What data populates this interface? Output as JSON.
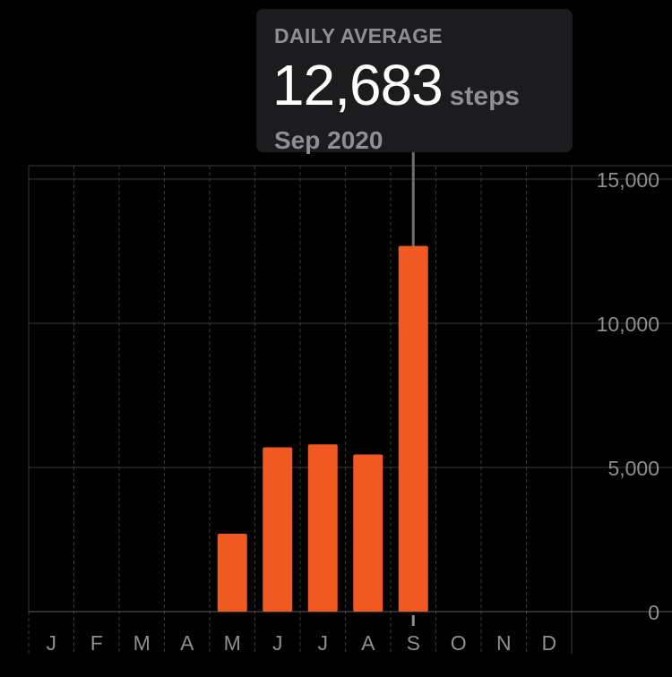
{
  "tooltip": {
    "label": "DAILY AVERAGE",
    "value": "12,683",
    "unit": "steps",
    "date": "Sep 2020"
  },
  "colors": {
    "background": "#000000",
    "bar": "#f05a22",
    "grid": "#3a3a3c",
    "axis_text": "#8e8e93",
    "tooltip_bg": "#1c1c1e"
  },
  "chart_data": {
    "type": "bar",
    "categories": [
      "J",
      "F",
      "M",
      "A",
      "M",
      "J",
      "J",
      "A",
      "S",
      "O",
      "N",
      "D"
    ],
    "values": [
      0,
      0,
      0,
      0,
      2700,
      5700,
      5800,
      5450,
      12683,
      0,
      0,
      0
    ],
    "title": "",
    "xlabel": "",
    "ylabel": "",
    "ylim": [
      0,
      15000
    ],
    "yticks": [
      0,
      5000,
      10000,
      15000
    ],
    "ytick_labels": [
      "0",
      "5,000",
      "10,000",
      "15,000"
    ],
    "grid": true,
    "highlighted_category_index": 8
  }
}
